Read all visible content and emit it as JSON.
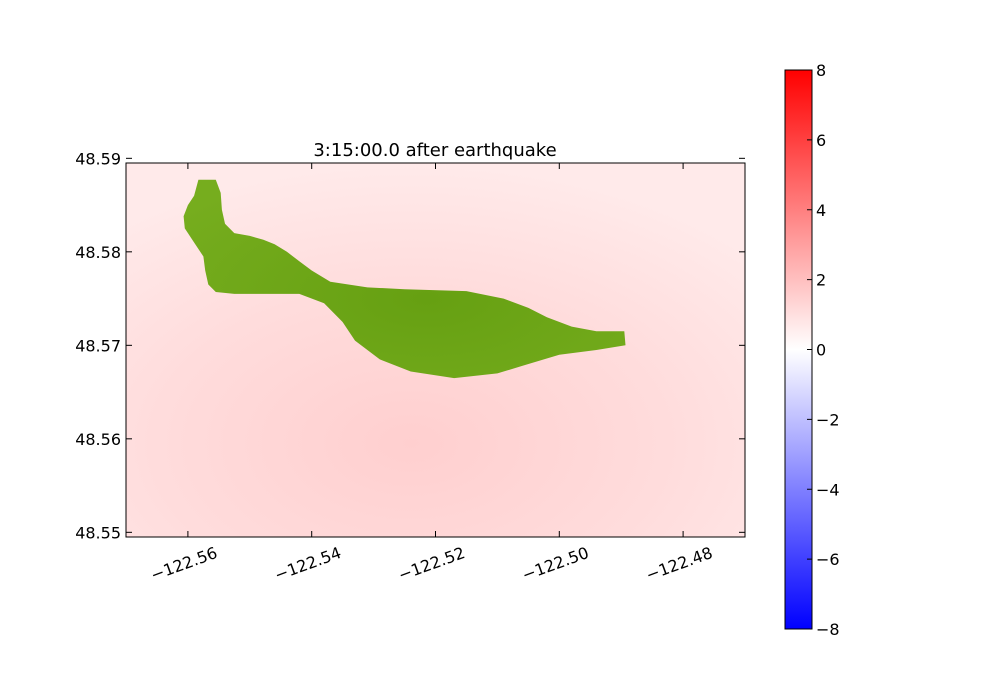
{
  "chart_data": {
    "type": "heatmap",
    "title": "3:15:00.0 after earthquake",
    "xlabel": "",
    "ylabel": "",
    "xlim": [
      -122.57,
      -122.47
    ],
    "ylim": [
      48.5495,
      48.5895
    ],
    "x_ticks": [
      -122.56,
      -122.54,
      -122.52,
      -122.5,
      -122.48
    ],
    "y_ticks": [
      48.55,
      48.56,
      48.57,
      48.58,
      48.59
    ],
    "x_tick_labels": [
      "−122.56",
      "−122.54",
      "−122.52",
      "−122.50",
      "−122.48"
    ],
    "y_tick_labels": [
      "48.55",
      "48.56",
      "48.57",
      "48.58",
      "48.59"
    ],
    "colorbar": {
      "range": [
        -8,
        8
      ],
      "ticks": [
        8,
        6,
        4,
        2,
        0,
        -2,
        -4,
        -6,
        -8
      ],
      "tick_labels": [
        "8",
        "6",
        "4",
        "2",
        "0",
        "−2",
        "−4",
        "−6",
        "−8"
      ],
      "colormap": [
        "#0000ff",
        "#ffffff",
        "#ff0000"
      ]
    },
    "field": {
      "description_value_range": [
        0.3,
        1.2
      ],
      "background_color": "#ffe0e0"
    },
    "land": {
      "color": "#6aa318",
      "outline": [
        [
          -122.5583,
          48.5877
        ],
        [
          -122.5555,
          48.5877
        ],
        [
          -122.5547,
          48.5863
        ],
        [
          -122.5545,
          48.5845
        ],
        [
          -122.554,
          48.583
        ],
        [
          -122.5525,
          48.582
        ],
        [
          -122.55,
          48.5817
        ],
        [
          -122.5478,
          48.5813
        ],
        [
          -122.546,
          48.5808
        ],
        [
          -122.544,
          48.58
        ],
        [
          -122.542,
          48.579
        ],
        [
          -122.54,
          48.578
        ],
        [
          -122.537,
          48.5768
        ],
        [
          -122.531,
          48.5762
        ],
        [
          -122.525,
          48.576
        ],
        [
          -122.515,
          48.5758
        ],
        [
          -122.509,
          48.575
        ],
        [
          -122.505,
          48.574
        ],
        [
          -122.502,
          48.573
        ],
        [
          -122.498,
          48.572
        ],
        [
          -122.494,
          48.5715
        ],
        [
          -122.4895,
          48.5715
        ],
        [
          -122.4893,
          48.57
        ],
        [
          -122.494,
          48.5695
        ],
        [
          -122.5,
          48.569
        ],
        [
          -122.506,
          48.5678
        ],
        [
          -122.51,
          48.567
        ],
        [
          -122.517,
          48.5665
        ],
        [
          -122.524,
          48.5672
        ],
        [
          -122.529,
          48.5685
        ],
        [
          -122.533,
          48.5705
        ],
        [
          -122.535,
          48.5725
        ],
        [
          -122.538,
          48.5745
        ],
        [
          -122.542,
          48.5755
        ],
        [
          -122.5485,
          48.5755
        ],
        [
          -122.5525,
          48.5755
        ],
        [
          -122.5555,
          48.5757
        ],
        [
          -122.5567,
          48.5765
        ],
        [
          -122.5572,
          48.578
        ],
        [
          -122.5575,
          48.5795
        ],
        [
          -122.559,
          48.581
        ],
        [
          -122.5605,
          48.5825
        ],
        [
          -122.5607,
          48.5838
        ],
        [
          -122.56,
          48.585
        ],
        [
          -122.559,
          48.586
        ],
        [
          -122.5583,
          48.5877
        ]
      ]
    }
  }
}
